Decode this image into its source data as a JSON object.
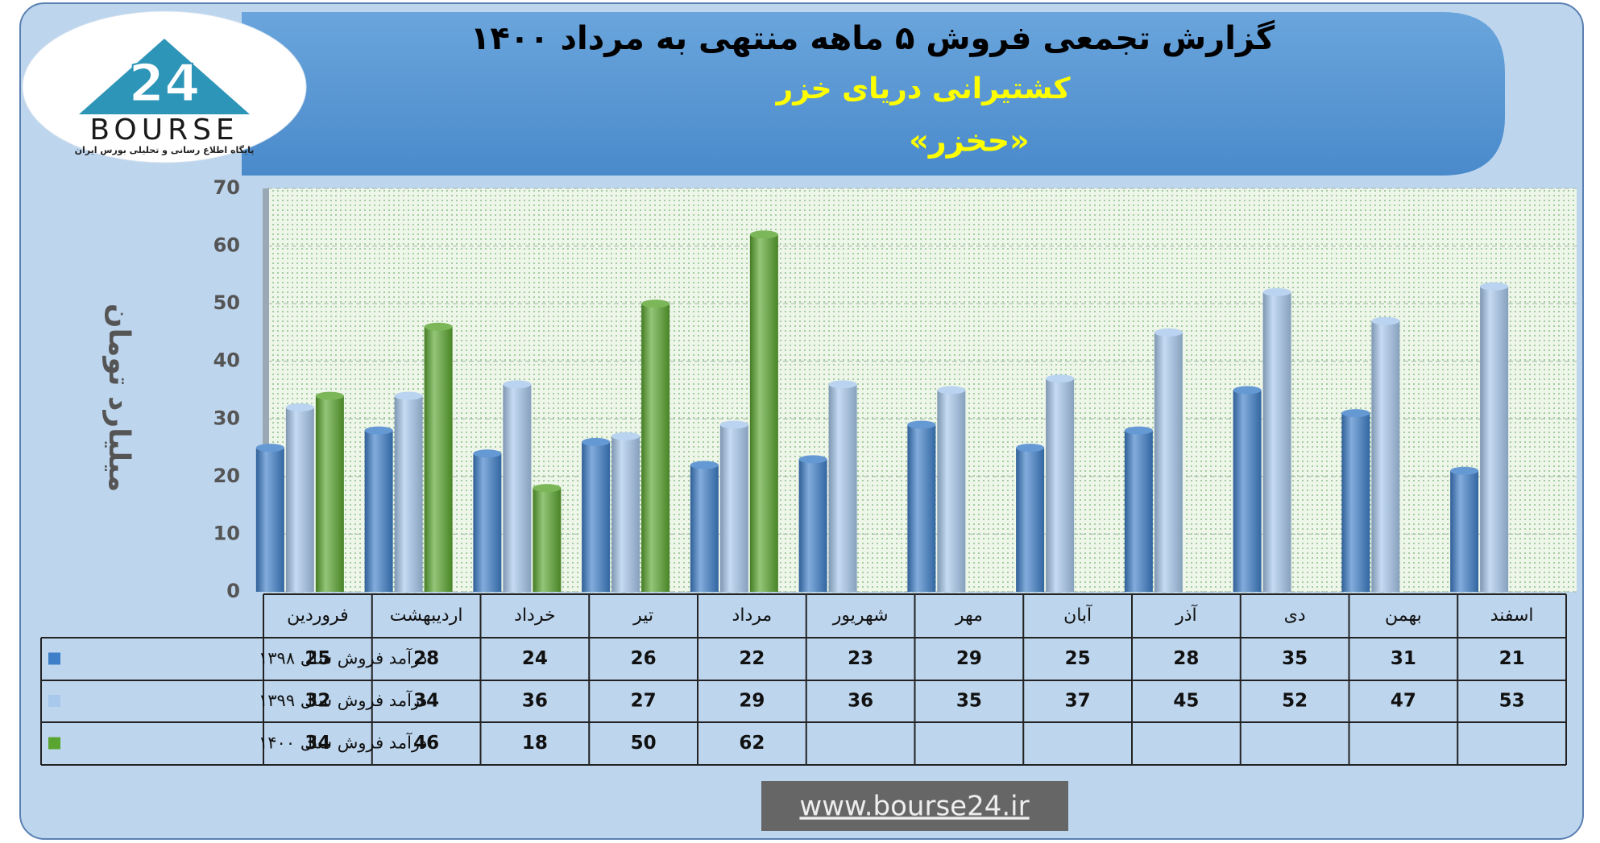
{
  "chart_data": {
    "type": "bar",
    "title": "گزارش تجمعی فروش ۵ ماهه منتهی به مرداد ۱۴۰۰",
    "subtitle": "کشتیرانی دریای خزر",
    "ticker": "«حخزر»",
    "y_label": "میلیارد تومان",
    "categories": [
      "فروردین",
      "اردیبهشت",
      "خرداد",
      "تیر",
      "مرداد",
      "شهریور",
      "مهر",
      "آبان",
      "آذر",
      "دی",
      "بهمن",
      "اسفند"
    ],
    "series": [
      {
        "name": "درآمد فروش سال ۱۳۹۸",
        "color": "#3f7fc9",
        "values": [
          25,
          28,
          24,
          26,
          22,
          23,
          29,
          25,
          28,
          35,
          31,
          21
        ]
      },
      {
        "name": "درآمد فروش سال ۱۳۹۹",
        "color": "#a8c8ec",
        "values": [
          32,
          34,
          36,
          27,
          29,
          36,
          35,
          37,
          45,
          52,
          47,
          53
        ]
      },
      {
        "name": "درآمد فروش سال ۱۴۰۰",
        "color": "#5aa52f",
        "values": [
          34,
          46,
          18,
          50,
          62,
          null,
          null,
          null,
          null,
          null,
          null,
          null
        ]
      }
    ],
    "ylim": [
      0,
      70
    ],
    "yticks": [
      0,
      10,
      20,
      30,
      40,
      50,
      60,
      70
    ],
    "grid": true
  },
  "logo": {
    "number": "24",
    "name": "BOURSE",
    "tagline": "پایگاه اطلاع رسانی و تحلیلی بورس ایران"
  },
  "footer": {
    "url": "www.bourse24.ir"
  }
}
